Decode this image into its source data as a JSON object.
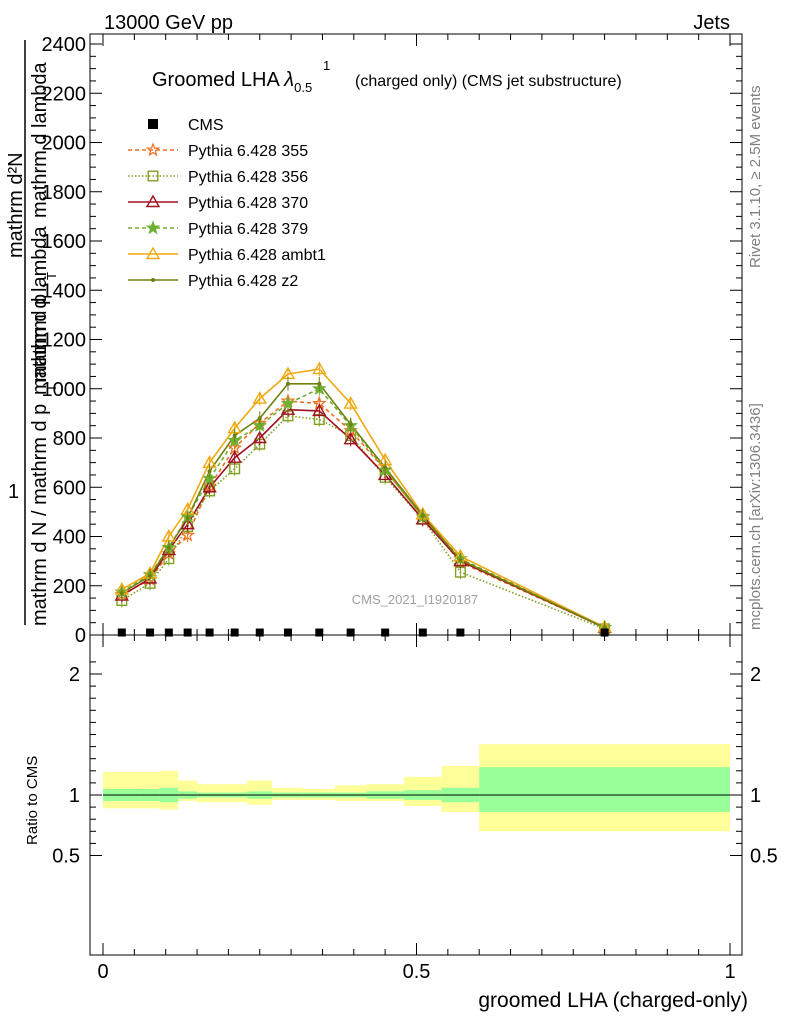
{
  "header": {
    "left": "13000 GeV pp",
    "right": "Jets"
  },
  "chart_data": {
    "type": "line",
    "title_main": "Groomed LHA ",
    "title_lambda": "λ",
    "title_sup": "1",
    "title_sub": "0.5",
    "title_tail": "(charged only) (CMS jet substructure)",
    "ylabel": "1 / mathrm d N / mathrm d p_T mathrm d lambda   mathrm d²N / mathrm d p_T mathrm d lambda",
    "ylabel_lines": [
      "mathrm d²N",
      "mathrm d p",
      "T",
      "mathrm d lambda",
      "1",
      "mathrm d N / mathrm d p",
      "T",
      "mathrm d lambda"
    ],
    "xlabel": "groomed LHA (charged-only)",
    "ratio_ylabel": "Ratio to CMS",
    "watermark": "CMS_2021_I1920187",
    "side_text_top": "Rivet 3.1.10, ≥ 2.5M events",
    "side_text_bottom": "mcplots.cern.ch [arXiv:1306.3436]",
    "xlim": [
      0,
      1
    ],
    "ylim": [
      0,
      2400
    ],
    "ratio_ylim": [
      0.5,
      2.2
    ],
    "x_ticks": [
      0,
      0.5,
      1
    ],
    "x_tick_labels": [
      "0",
      "0.5",
      "1"
    ],
    "y_ticks": [
      0,
      200,
      400,
      600,
      800,
      1000,
      1200,
      1400,
      1600,
      1800,
      2000,
      2200,
      2400
    ],
    "y_tick_labels": [
      "0",
      "200",
      "400",
      "600",
      "800",
      "1000",
      "1200",
      "1400",
      "1600",
      "1800",
      "2000",
      "2200",
      "2400"
    ],
    "ratio_ticks": [
      0.5,
      1,
      2
    ],
    "ratio_tick_labels": [
      "0.5",
      "1",
      "2"
    ],
    "legend_position": "top-left",
    "x": [
      0.03,
      0.075,
      0.105,
      0.135,
      0.17,
      0.21,
      0.25,
      0.295,
      0.345,
      0.395,
      0.45,
      0.51,
      0.57,
      0.8
    ],
    "cms": {
      "name": "CMS",
      "values": [
        6,
        6,
        6,
        6,
        6,
        6,
        6,
        6,
        6,
        6,
        6,
        6,
        6,
        6
      ]
    },
    "series": [
      {
        "name": "Pythia 6.428 355",
        "color": "#f07020",
        "marker": "star-open",
        "dash": "4,3",
        "values": [
          165,
          225,
          330,
          405,
          605,
          760,
          860,
          950,
          940,
          830,
          670,
          480,
          295,
          30
        ]
      },
      {
        "name": "Pythia 6.428 356",
        "color": "#80a020",
        "marker": "square-open",
        "dash": "1.5,2",
        "values": [
          140,
          210,
          310,
          440,
          585,
          675,
          775,
          890,
          875,
          810,
          640,
          470,
          255,
          25
        ]
      },
      {
        "name": "Pythia 6.428 370",
        "color": "#a01020",
        "marker": "triangle-open",
        "dash": "",
        "values": [
          160,
          230,
          345,
          450,
          600,
          720,
          800,
          915,
          910,
          795,
          650,
          470,
          300,
          30
        ]
      },
      {
        "name": "Pythia 6.428 379",
        "color": "#70b030",
        "marker": "star-filled",
        "dash": "4,3",
        "values": [
          175,
          245,
          355,
          480,
          635,
          790,
          850,
          940,
          1000,
          850,
          670,
          480,
          310,
          30
        ]
      },
      {
        "name": "Pythia 6.428 ambt1",
        "color": "#f0a810",
        "marker": "triangle-open",
        "dash": "",
        "values": [
          185,
          250,
          400,
          510,
          700,
          840,
          960,
          1060,
          1080,
          940,
          710,
          490,
          320,
          32
        ]
      },
      {
        "name": "Pythia 6.428 z2",
        "color": "#708010",
        "marker": "dot",
        "dash": "",
        "values": [
          170,
          240,
          355,
          475,
          665,
          810,
          880,
          1020,
          1020,
          855,
          680,
          485,
          305,
          30
        ]
      }
    ],
    "ratio_bands": {
      "edges": [
        0,
        0.06,
        0.09,
        0.12,
        0.15,
        0.19,
        0.23,
        0.27,
        0.32,
        0.37,
        0.42,
        0.48,
        0.54,
        0.6,
        1.0
      ],
      "inner_lo": [
        0.95,
        0.95,
        0.94,
        0.97,
        0.98,
        0.98,
        0.97,
        0.98,
        0.98,
        0.98,
        0.97,
        0.96,
        0.94,
        0.86
      ],
      "inner_hi": [
        1.05,
        1.05,
        1.06,
        1.03,
        1.02,
        1.02,
        1.03,
        1.02,
        1.02,
        1.02,
        1.03,
        1.04,
        1.06,
        1.23
      ],
      "outer_lo": [
        0.89,
        0.89,
        0.88,
        0.95,
        0.94,
        0.94,
        0.92,
        0.96,
        0.96,
        0.95,
        0.95,
        0.91,
        0.86,
        0.7
      ],
      "outer_hi": [
        1.19,
        1.19,
        1.2,
        1.12,
        1.09,
        1.09,
        1.12,
        1.06,
        1.05,
        1.08,
        1.09,
        1.15,
        1.24,
        1.42
      ],
      "inner_color": "#99ff99",
      "outer_color": "#ffff99"
    }
  }
}
